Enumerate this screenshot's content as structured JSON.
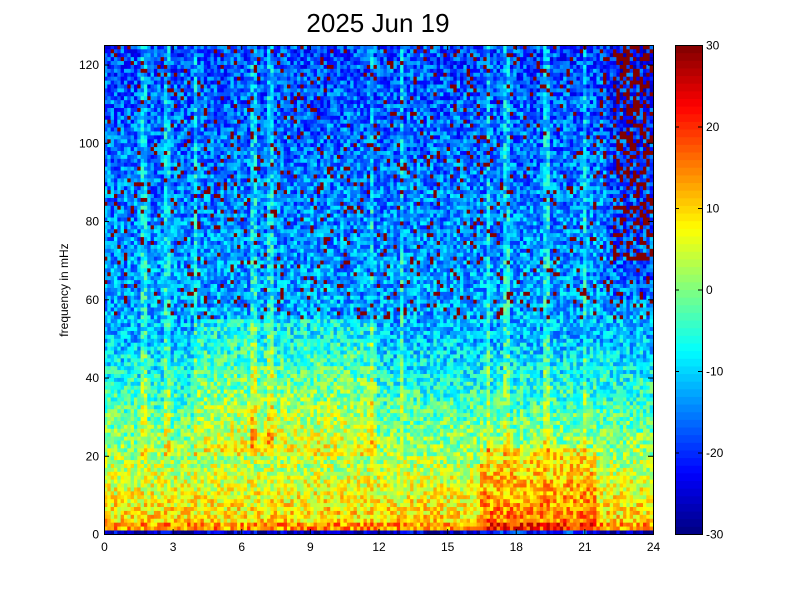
{
  "chart_data": {
    "type": "heatmap",
    "title": "2025 Jun 19",
    "xlabel": "",
    "ylabel": "frequency in mHz",
    "xlim": [
      0,
      24
    ],
    "ylim": [
      0,
      125
    ],
    "x_ticks": [
      "0",
      "3",
      "6",
      "9",
      "12",
      "15",
      "18",
      "21",
      "24"
    ],
    "y_ticks": [
      "0",
      "20",
      "40",
      "60",
      "80",
      "100",
      "120"
    ],
    "colorbar": {
      "range": [
        -30,
        30
      ],
      "ticks": [
        "-30",
        "-20",
        "-10",
        "0",
        "10",
        "20",
        "30"
      ],
      "colormap": "jet"
    },
    "grid": false,
    "description_of_values": {
      "x_cols": 165,
      "y_rows": 125,
      "value_units": "colorbar"
    }
  }
}
